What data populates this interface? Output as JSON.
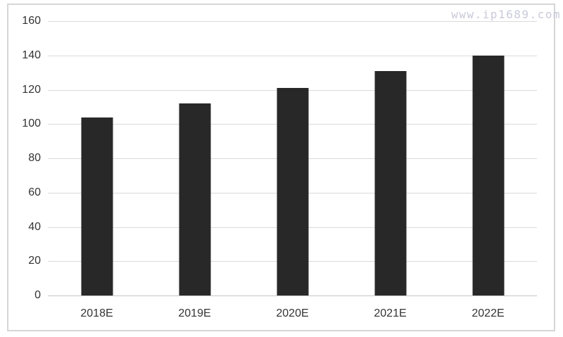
{
  "watermark": "www.ip1689.com",
  "chart_data": {
    "type": "bar",
    "title": "",
    "xlabel": "",
    "ylabel": "",
    "categories": [
      "2018E",
      "2019E",
      "2020E",
      "2021E",
      "2022E"
    ],
    "values": [
      104,
      112,
      121,
      131,
      140
    ],
    "ylim": [
      0,
      160
    ],
    "ytick_step": 20,
    "grid": true,
    "legend": false,
    "bar_color": "#282828",
    "grid_color": "#dadada",
    "baseline_color": "#c6c6c6",
    "axis_text_color": "#333333",
    "watermark_color": "#c9cada",
    "frame_color": "#d6d6d6"
  }
}
